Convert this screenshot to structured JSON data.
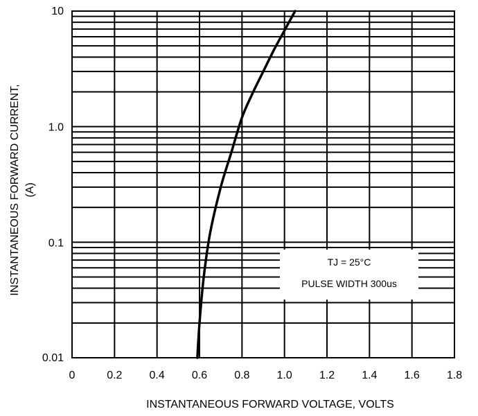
{
  "chart_data": {
    "type": "line",
    "title": "",
    "xlabel": "INSTANTANEOUS FORWARD VOLTAGE, VOLTS",
    "ylabel_lines": [
      "INSTANTANEOUS FORWARD CURRENT,",
      "(A)"
    ],
    "xlim": [
      0,
      1.8
    ],
    "ylim": [
      0.01,
      10
    ],
    "yscale": "log",
    "grid": true,
    "x_ticks": [
      "0",
      "0.2",
      "0.4",
      "0.6",
      "0.8",
      "1.0",
      "1.2",
      "1.4",
      "1.6",
      "1.8"
    ],
    "y_ticks": [
      "0.01",
      "0.1",
      "1.0",
      "10"
    ],
    "series": [
      {
        "x": [
          0.59,
          0.6,
          0.62,
          0.65,
          0.7,
          0.75,
          0.8,
          0.85,
          0.9,
          0.95,
          1.0,
          1.05
        ],
        "y": [
          0.01,
          0.02,
          0.05,
          0.12,
          0.3,
          0.6,
          1.2,
          1.95,
          3.0,
          4.6,
          6.8,
          10
        ]
      }
    ],
    "annotations": [
      "TJ = 25°C",
      "PULSE WIDTH 300us"
    ]
  }
}
